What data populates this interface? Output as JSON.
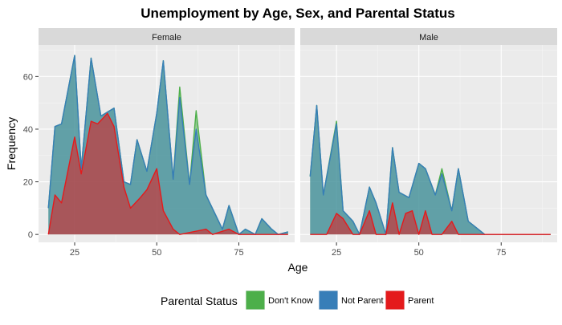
{
  "chart_data": {
    "type": "area",
    "title": "Unemployment by Age, Sex, and Parental Status",
    "xlabel": "Age",
    "ylabel": "Frequency",
    "xlim": [
      14,
      92
    ],
    "ylim": [
      -3,
      72
    ],
    "xticks": [
      25,
      50,
      75
    ],
    "yticks": [
      0,
      20,
      40,
      60
    ],
    "grid": true,
    "legend": {
      "title": "Parental Status",
      "position": "bottom",
      "entries": [
        {
          "label": "Don't Know",
          "color": "#4daf4a"
        },
        {
          "label": "Not Parent",
          "color": "#377eb8"
        },
        {
          "label": "Parent",
          "color": "#e41a1c"
        }
      ]
    },
    "facets": [
      {
        "label": "Female",
        "series": [
          {
            "name": "Don't Know",
            "color": "#4daf4a",
            "points": [
              [
                17,
                10
              ],
              [
                19,
                41
              ],
              [
                21,
                42
              ],
              [
                25,
                68
              ],
              [
                27,
                25
              ],
              [
                30,
                67
              ],
              [
                33,
                45
              ],
              [
                37,
                48
              ],
              [
                40,
                20
              ],
              [
                42,
                19
              ],
              [
                44,
                36
              ],
              [
                47,
                24
              ],
              [
                50,
                46
              ],
              [
                52,
                66
              ],
              [
                55,
                21
              ],
              [
                57,
                56
              ],
              [
                60,
                19
              ],
              [
                62,
                47
              ],
              [
                65,
                15
              ],
              [
                70,
                2
              ],
              [
                72,
                11
              ],
              [
                75,
                0
              ],
              [
                77,
                2
              ],
              [
                80,
                0
              ],
              [
                82,
                6
              ],
              [
                85,
                2
              ],
              [
                87,
                0
              ],
              [
                90,
                1
              ]
            ]
          },
          {
            "name": "Not Parent",
            "color": "#377eb8",
            "points": [
              [
                17,
                10
              ],
              [
                19,
                41
              ],
              [
                21,
                42
              ],
              [
                25,
                68
              ],
              [
                27,
                25
              ],
              [
                30,
                67
              ],
              [
                33,
                45
              ],
              [
                37,
                48
              ],
              [
                40,
                20
              ],
              [
                42,
                19
              ],
              [
                44,
                36
              ],
              [
                47,
                24
              ],
              [
                50,
                46
              ],
              [
                52,
                66
              ],
              [
                55,
                21
              ],
              [
                57,
                52
              ],
              [
                60,
                19
              ],
              [
                62,
                40
              ],
              [
                65,
                15
              ],
              [
                70,
                2
              ],
              [
                72,
                11
              ],
              [
                75,
                0
              ],
              [
                77,
                2
              ],
              [
                80,
                0
              ],
              [
                82,
                6
              ],
              [
                85,
                2
              ],
              [
                87,
                0
              ],
              [
                90,
                1
              ]
            ]
          },
          {
            "name": "Parent",
            "color": "#e41a1c",
            "points": [
              [
                17,
                0
              ],
              [
                19,
                15
              ],
              [
                21,
                12
              ],
              [
                25,
                37
              ],
              [
                27,
                23
              ],
              [
                30,
                43
              ],
              [
                32,
                42
              ],
              [
                35,
                46
              ],
              [
                37,
                41
              ],
              [
                40,
                18
              ],
              [
                42,
                10
              ],
              [
                45,
                14
              ],
              [
                47,
                17
              ],
              [
                50,
                25
              ],
              [
                52,
                9
              ],
              [
                55,
                2
              ],
              [
                57,
                0
              ],
              [
                65,
                2
              ],
              [
                67,
                0
              ],
              [
                72,
                2
              ],
              [
                75,
                0
              ],
              [
                90,
                0
              ]
            ]
          }
        ]
      },
      {
        "label": "Male",
        "series": [
          {
            "name": "Don't Know",
            "color": "#4daf4a",
            "points": [
              [
                17,
                22
              ],
              [
                19,
                49
              ],
              [
                21,
                15
              ],
              [
                25,
                43
              ],
              [
                27,
                9
              ],
              [
                30,
                5
              ],
              [
                32,
                0
              ],
              [
                35,
                18
              ],
              [
                37,
                12
              ],
              [
                40,
                0
              ],
              [
                42,
                33
              ],
              [
                44,
                16
              ],
              [
                47,
                14
              ],
              [
                50,
                27
              ],
              [
                52,
                25
              ],
              [
                55,
                15
              ],
              [
                57,
                25
              ],
              [
                60,
                9
              ],
              [
                62,
                25
              ],
              [
                65,
                5
              ],
              [
                67,
                3
              ],
              [
                70,
                0
              ],
              [
                90,
                0
              ]
            ]
          },
          {
            "name": "Not Parent",
            "color": "#377eb8",
            "points": [
              [
                17,
                22
              ],
              [
                19,
                49
              ],
              [
                21,
                15
              ],
              [
                25,
                42
              ],
              [
                27,
                9
              ],
              [
                30,
                5
              ],
              [
                32,
                0
              ],
              [
                35,
                18
              ],
              [
                37,
                12
              ],
              [
                40,
                0
              ],
              [
                42,
                33
              ],
              [
                44,
                16
              ],
              [
                47,
                14
              ],
              [
                50,
                27
              ],
              [
                52,
                25
              ],
              [
                55,
                15
              ],
              [
                57,
                23
              ],
              [
                60,
                9
              ],
              [
                62,
                25
              ],
              [
                65,
                5
              ],
              [
                67,
                3
              ],
              [
                70,
                0
              ],
              [
                90,
                0
              ]
            ]
          },
          {
            "name": "Parent",
            "color": "#e41a1c",
            "points": [
              [
                17,
                0
              ],
              [
                22,
                0
              ],
              [
                25,
                8
              ],
              [
                27,
                6
              ],
              [
                30,
                0
              ],
              [
                32,
                0
              ],
              [
                35,
                9
              ],
              [
                37,
                0
              ],
              [
                40,
                0
              ],
              [
                42,
                12
              ],
              [
                44,
                0
              ],
              [
                46,
                8
              ],
              [
                48,
                9
              ],
              [
                50,
                0
              ],
              [
                52,
                9
              ],
              [
                54,
                0
              ],
              [
                57,
                0
              ],
              [
                60,
                5
              ],
              [
                62,
                0
              ],
              [
                90,
                0
              ]
            ]
          }
        ]
      }
    ]
  }
}
